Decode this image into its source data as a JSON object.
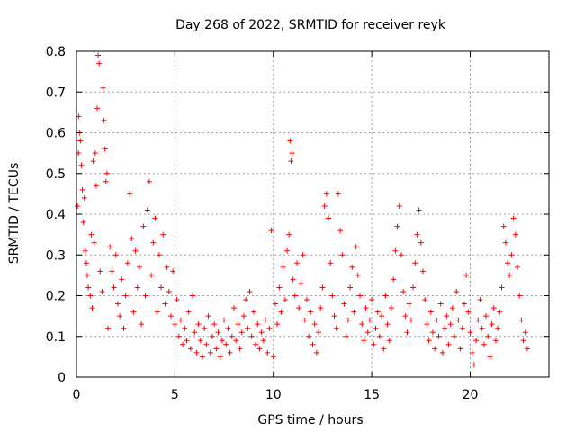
{
  "chart_data": {
    "type": "scatter",
    "title": "Day 268 of 2022, SRMTID for receiver reyk",
    "xlabel": "GPS time / hours",
    "ylabel": "SRMTID / TECUs",
    "xlim": [
      0,
      24
    ],
    "ylim": [
      0,
      0.8
    ],
    "xticks": [
      0,
      5,
      10,
      15,
      20
    ],
    "xtick_labels": [
      "0",
      "5",
      "10",
      "15",
      "20"
    ],
    "yticks": [
      0,
      0.1,
      0.2,
      0.3,
      0.4,
      0.5,
      0.6,
      0.7,
      0.8
    ],
    "ytick_labels": [
      "0",
      "0.1",
      "0.2",
      "0.3",
      "0.4",
      "0.5",
      "0.6",
      "0.7",
      "0.8"
    ],
    "grid": true,
    "marker": "+",
    "color": "#ff0000",
    "series": [
      {
        "name": "SRMTID",
        "points": [
          [
            0.05,
            0.42
          ],
          [
            0.1,
            0.55
          ],
          [
            0.12,
            0.64
          ],
          [
            0.15,
            0.6
          ],
          [
            0.2,
            0.58
          ],
          [
            0.25,
            0.52
          ],
          [
            0.3,
            0.46
          ],
          [
            0.35,
            0.38
          ],
          [
            0.4,
            0.44
          ],
          [
            0.45,
            0.31
          ],
          [
            0.5,
            0.28
          ],
          [
            0.55,
            0.25
          ],
          [
            0.6,
            0.22
          ],
          [
            0.7,
            0.2
          ],
          [
            0.75,
            0.35
          ],
          [
            0.8,
            0.17
          ],
          [
            0.85,
            0.53
          ],
          [
            0.9,
            0.33
          ],
          [
            0.95,
            0.55
          ],
          [
            1.0,
            0.47
          ],
          [
            1.05,
            0.66
          ],
          [
            1.1,
            0.79
          ],
          [
            1.15,
            0.77
          ],
          [
            1.2,
            0.26
          ],
          [
            1.3,
            0.21
          ],
          [
            1.35,
            0.71
          ],
          [
            1.4,
            0.63
          ],
          [
            1.45,
            0.56
          ],
          [
            1.5,
            0.48
          ],
          [
            1.55,
            0.5
          ],
          [
            1.6,
            0.12
          ],
          [
            1.7,
            0.32
          ],
          [
            1.8,
            0.26
          ],
          [
            1.9,
            0.22
          ],
          [
            2.0,
            0.3
          ],
          [
            2.1,
            0.18
          ],
          [
            2.2,
            0.15
          ],
          [
            2.3,
            0.24
          ],
          [
            2.4,
            0.12
          ],
          [
            2.5,
            0.2
          ],
          [
            2.6,
            0.28
          ],
          [
            2.7,
            0.45
          ],
          [
            2.8,
            0.34
          ],
          [
            2.9,
            0.16
          ],
          [
            3.0,
            0.31
          ],
          [
            3.1,
            0.22
          ],
          [
            3.2,
            0.27
          ],
          [
            3.3,
            0.13
          ],
          [
            3.4,
            0.37
          ],
          [
            3.5,
            0.2
          ],
          [
            3.6,
            0.41
          ],
          [
            3.7,
            0.48
          ],
          [
            3.8,
            0.25
          ],
          [
            3.9,
            0.33
          ],
          [
            4.0,
            0.39
          ],
          [
            4.1,
            0.16
          ],
          [
            4.2,
            0.3
          ],
          [
            4.3,
            0.22
          ],
          [
            4.4,
            0.35
          ],
          [
            4.5,
            0.18
          ],
          [
            4.6,
            0.27
          ],
          [
            4.7,
            0.21
          ],
          [
            4.8,
            0.15
          ],
          [
            4.9,
            0.26
          ],
          [
            5.0,
            0.13
          ],
          [
            5.1,
            0.19
          ],
          [
            5.2,
            0.1
          ],
          [
            5.3,
            0.14
          ],
          [
            5.4,
            0.08
          ],
          [
            5.5,
            0.12
          ],
          [
            5.6,
            0.09
          ],
          [
            5.7,
            0.16
          ],
          [
            5.8,
            0.07
          ],
          [
            5.9,
            0.2
          ],
          [
            6.0,
            0.11
          ],
          [
            6.1,
            0.06
          ],
          [
            6.2,
            0.13
          ],
          [
            6.3,
            0.09
          ],
          [
            6.4,
            0.05
          ],
          [
            6.5,
            0.12
          ],
          [
            6.6,
            0.08
          ],
          [
            6.7,
            0.15
          ],
          [
            6.8,
            0.06
          ],
          [
            6.9,
            0.1
          ],
          [
            7.0,
            0.13
          ],
          [
            7.1,
            0.07
          ],
          [
            7.2,
            0.11
          ],
          [
            7.3,
            0.05
          ],
          [
            7.4,
            0.09
          ],
          [
            7.5,
            0.14
          ],
          [
            7.6,
            0.08
          ],
          [
            7.7,
            0.12
          ],
          [
            7.8,
            0.06
          ],
          [
            7.9,
            0.1
          ],
          [
            8.0,
            0.17
          ],
          [
            8.1,
            0.09
          ],
          [
            8.2,
            0.13
          ],
          [
            8.3,
            0.07
          ],
          [
            8.4,
            0.11
          ],
          [
            8.5,
            0.15
          ],
          [
            8.6,
            0.19
          ],
          [
            8.7,
            0.12
          ],
          [
            8.8,
            0.21
          ],
          [
            8.9,
            0.1
          ],
          [
            9.0,
            0.16
          ],
          [
            9.1,
            0.08
          ],
          [
            9.2,
            0.13
          ],
          [
            9.3,
            0.07
          ],
          [
            9.4,
            0.11
          ],
          [
            9.5,
            0.09
          ],
          [
            9.6,
            0.14
          ],
          [
            9.7,
            0.06
          ],
          [
            9.8,
            0.12
          ],
          [
            9.9,
            0.36
          ],
          [
            10.0,
            0.05
          ],
          [
            10.1,
            0.18
          ],
          [
            10.2,
            0.13
          ],
          [
            10.3,
            0.22
          ],
          [
            10.4,
            0.16
          ],
          [
            10.5,
            0.27
          ],
          [
            10.6,
            0.19
          ],
          [
            10.7,
            0.31
          ],
          [
            10.8,
            0.35
          ],
          [
            10.85,
            0.58
          ],
          [
            10.9,
            0.53
          ],
          [
            10.95,
            0.55
          ],
          [
            11.0,
            0.24
          ],
          [
            11.1,
            0.2
          ],
          [
            11.2,
            0.28
          ],
          [
            11.3,
            0.17
          ],
          [
            11.4,
            0.23
          ],
          [
            11.5,
            0.3
          ],
          [
            11.6,
            0.14
          ],
          [
            11.7,
            0.19
          ],
          [
            11.8,
            0.1
          ],
          [
            11.9,
            0.16
          ],
          [
            12.0,
            0.08
          ],
          [
            12.1,
            0.13
          ],
          [
            12.2,
            0.06
          ],
          [
            12.3,
            0.11
          ],
          [
            12.4,
            0.17
          ],
          [
            12.5,
            0.22
          ],
          [
            12.6,
            0.42
          ],
          [
            12.7,
            0.45
          ],
          [
            12.8,
            0.39
          ],
          [
            12.9,
            0.28
          ],
          [
            13.0,
            0.2
          ],
          [
            13.1,
            0.15
          ],
          [
            13.2,
            0.12
          ],
          [
            13.3,
            0.45
          ],
          [
            13.4,
            0.36
          ],
          [
            13.5,
            0.3
          ],
          [
            13.6,
            0.18
          ],
          [
            13.7,
            0.1
          ],
          [
            13.8,
            0.14
          ],
          [
            13.9,
            0.22
          ],
          [
            14.0,
            0.27
          ],
          [
            14.1,
            0.16
          ],
          [
            14.2,
            0.32
          ],
          [
            14.3,
            0.25
          ],
          [
            14.4,
            0.2
          ],
          [
            14.5,
            0.13
          ],
          [
            14.6,
            0.09
          ],
          [
            14.7,
            0.17
          ],
          [
            14.8,
            0.11
          ],
          [
            14.9,
            0.14
          ],
          [
            15.0,
            0.19
          ],
          [
            15.1,
            0.08
          ],
          [
            15.2,
            0.12
          ],
          [
            15.3,
            0.16
          ],
          [
            15.4,
            0.1
          ],
          [
            15.5,
            0.15
          ],
          [
            15.6,
            0.07
          ],
          [
            15.7,
            0.2
          ],
          [
            15.8,
            0.13
          ],
          [
            15.9,
            0.09
          ],
          [
            16.0,
            0.17
          ],
          [
            16.1,
            0.24
          ],
          [
            16.2,
            0.31
          ],
          [
            16.3,
            0.37
          ],
          [
            16.4,
            0.42
          ],
          [
            16.5,
            0.3
          ],
          [
            16.6,
            0.21
          ],
          [
            16.7,
            0.15
          ],
          [
            16.8,
            0.11
          ],
          [
            16.9,
            0.18
          ],
          [
            17.0,
            0.14
          ],
          [
            17.1,
            0.22
          ],
          [
            17.2,
            0.28
          ],
          [
            17.3,
            0.35
          ],
          [
            17.4,
            0.41
          ],
          [
            17.5,
            0.33
          ],
          [
            17.6,
            0.26
          ],
          [
            17.7,
            0.19
          ],
          [
            17.8,
            0.13
          ],
          [
            17.9,
            0.09
          ],
          [
            18.0,
            0.16
          ],
          [
            18.1,
            0.11
          ],
          [
            18.2,
            0.07
          ],
          [
            18.3,
            0.14
          ],
          [
            18.4,
            0.1
          ],
          [
            18.5,
            0.18
          ],
          [
            18.6,
            0.06
          ],
          [
            18.7,
            0.12
          ],
          [
            18.8,
            0.15
          ],
          [
            18.9,
            0.08
          ],
          [
            19.0,
            0.13
          ],
          [
            19.1,
            0.17
          ],
          [
            19.2,
            0.1
          ],
          [
            19.3,
            0.21
          ],
          [
            19.4,
            0.14
          ],
          [
            19.5,
            0.07
          ],
          [
            19.6,
            0.12
          ],
          [
            19.7,
            0.18
          ],
          [
            19.8,
            0.25
          ],
          [
            19.9,
            0.16
          ],
          [
            20.0,
            0.11
          ],
          [
            20.1,
            0.06
          ],
          [
            20.2,
            0.03
          ],
          [
            20.3,
            0.09
          ],
          [
            20.4,
            0.14
          ],
          [
            20.5,
            0.19
          ],
          [
            20.6,
            0.12
          ],
          [
            20.7,
            0.08
          ],
          [
            20.8,
            0.15
          ],
          [
            20.9,
            0.1
          ],
          [
            21.0,
            0.05
          ],
          [
            21.1,
            0.13
          ],
          [
            21.2,
            0.17
          ],
          [
            21.3,
            0.09
          ],
          [
            21.4,
            0.12
          ],
          [
            21.5,
            0.16
          ],
          [
            21.6,
            0.22
          ],
          [
            21.7,
            0.37
          ],
          [
            21.8,
            0.33
          ],
          [
            21.9,
            0.28
          ],
          [
            22.0,
            0.25
          ],
          [
            22.1,
            0.3
          ],
          [
            22.2,
            0.39
          ],
          [
            22.3,
            0.35
          ],
          [
            22.4,
            0.27
          ],
          [
            22.5,
            0.2
          ],
          [
            22.6,
            0.14
          ],
          [
            22.7,
            0.09
          ],
          [
            22.8,
            0.11
          ],
          [
            22.9,
            0.07
          ]
        ]
      }
    ]
  }
}
